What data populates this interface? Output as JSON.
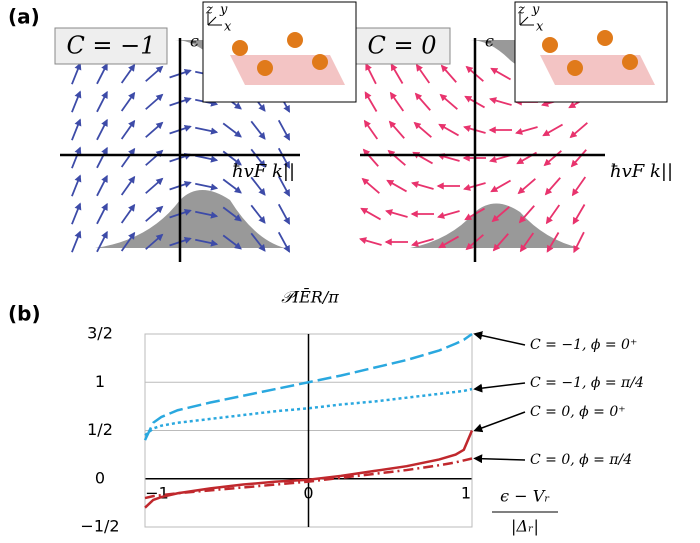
{
  "panel_a": {
    "label": "(a)",
    "panels": [
      {
        "chern": "C = −1",
        "energy": "ϵ",
        "momentum": "ħvF k||",
        "inset_axes": [
          "z",
          "y",
          "x"
        ]
      },
      {
        "chern": "C = 0",
        "energy": "ϵ",
        "momentum": "ħvF k||",
        "inset_axes": [
          "z",
          "y",
          "x"
        ]
      }
    ]
  },
  "chart_data": {
    "type": "line",
    "label": "(b)",
    "ylabel": "𝒫IĒR/π",
    "xlabel": "ϵ − Vᵣ",
    "xlabel_denominator": "|Δᵣ|",
    "x": [
      -1,
      -0.95,
      -0.9,
      -0.8,
      -0.6,
      -0.4,
      -0.2,
      0,
      0.2,
      0.4,
      0.6,
      0.8,
      0.9,
      0.95,
      1
    ],
    "series": [
      {
        "name": "C = −1, ϕ = 0⁺",
        "color": "#2aa8df",
        "style": "dashed",
        "values": [
          0.4,
          0.58,
          0.64,
          0.71,
          0.79,
          0.86,
          0.93,
          1.0,
          1.07,
          1.15,
          1.23,
          1.33,
          1.4,
          1.44,
          1.5
        ]
      },
      {
        "name": "C = −1, ϕ = π/4",
        "color": "#2aa8df",
        "style": "dotted",
        "values": [
          0.45,
          0.52,
          0.55,
          0.58,
          0.62,
          0.66,
          0.7,
          0.73,
          0.77,
          0.8,
          0.84,
          0.88,
          0.9,
          0.91,
          0.93
        ]
      },
      {
        "name": "C = 0, ϕ = 0⁺",
        "color": "#c0282d",
        "style": "solid",
        "values": [
          -0.3,
          -0.22,
          -0.19,
          -0.15,
          -0.1,
          -0.06,
          -0.03,
          -0.01,
          0.03,
          0.08,
          0.13,
          0.2,
          0.25,
          0.3,
          0.5
        ]
      },
      {
        "name": "C = 0, ϕ = π/4",
        "color": "#c0282d",
        "style": "dashdot",
        "values": [
          -0.2,
          -0.18,
          -0.17,
          -0.15,
          -0.12,
          -0.09,
          -0.06,
          -0.03,
          0.01,
          0.05,
          0.09,
          0.14,
          0.17,
          0.19,
          0.21
        ]
      }
    ],
    "xlim": [
      -1,
      1
    ],
    "ylim": [
      -0.5,
      1.5
    ],
    "xticks": [
      {
        "value": -1,
        "label": "−1"
      },
      0,
      1
    ],
    "yticks": [
      {
        "value": -0.5,
        "label": "−1/2"
      },
      0,
      {
        "value": 0.5,
        "label": "1/2"
      },
      1,
      {
        "value": 1.5,
        "label": "3/2"
      }
    ],
    "grid": true
  }
}
